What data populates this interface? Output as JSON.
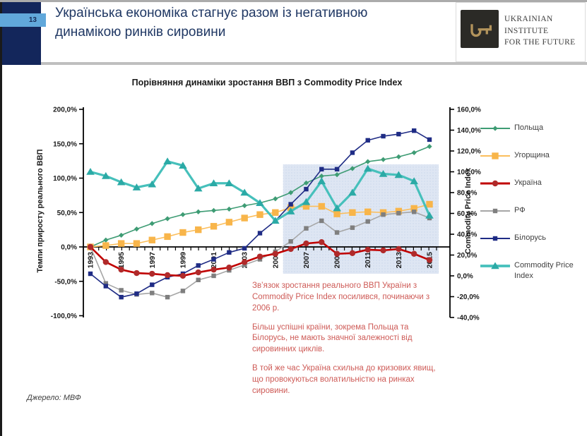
{
  "slide": {
    "number": "13",
    "title": "Українська економіка стагнує разом із негативною динамікою ринків сировини",
    "source": "Джерело: МВФ",
    "logo": {
      "line1": "Ukrainian",
      "line2": "Institute",
      "line3": "for the Future",
      "key_color": "#b3945c",
      "box_color": "#2b2a26"
    },
    "colors": {
      "title_blue": "#203864",
      "band_navy": "#13265b",
      "tab_blue": "#61a8db",
      "divider_gray": "#bfbfbf",
      "annotation_red": "#ce5b57"
    }
  },
  "chart_data": {
    "type": "line",
    "title": "Порівняння динаміки зростання ВВП з Commodity Price Index",
    "x": [
      1993,
      1994,
      1995,
      1996,
      1997,
      1998,
      1999,
      2000,
      2001,
      2002,
      2003,
      2004,
      2005,
      2006,
      2007,
      2008,
      2009,
      2010,
      2011,
      2012,
      2013,
      2014,
      2015
    ],
    "x_labeled_years": [
      "1993",
      "1995",
      "1997",
      "1999",
      "2001",
      "2003",
      "2005",
      "2007",
      "2009",
      "2011",
      "2013",
      "2015"
    ],
    "left_axis": {
      "label": "Темпи приросту реального ВВП",
      "min": -100,
      "max": 200,
      "tick_values": [
        200,
        150,
        100,
        50,
        0,
        -50,
        -100
      ],
      "tick_labels": [
        "200,0%",
        "150,0%",
        "100,0%",
        "50,0%",
        "0,0%",
        "-50,0%",
        "-100,0%"
      ]
    },
    "right_axis": {
      "label": "Commodity Price Index",
      "min": -40,
      "max": 160,
      "tick_values": [
        160,
        140,
        120,
        100,
        80,
        60,
        40,
        20,
        0,
        -20,
        -40
      ],
      "tick_labels": [
        "160,0%",
        "140,0%",
        "120,0%",
        "100,0%",
        "80,0%",
        "60,0%",
        "40,0%",
        "20,0%",
        "0,0%",
        "-20,0%",
        "-40,0%"
      ]
    },
    "highlight_region": {
      "x_start_year": 2005.5,
      "x_end_year": 2015.6,
      "top_left_value": 120,
      "bottom_left_value": -39,
      "fill": "#dee6f3"
    },
    "grid": false,
    "legend_position": "right",
    "series": [
      {
        "name": "Польща",
        "axis": "left",
        "color": "#3e9c74",
        "marker_color": "#3e9c74",
        "marker": "diamond",
        "line_width": 1.6,
        "values": [
          0,
          10,
          17,
          26,
          34,
          41,
          47,
          51,
          53,
          55,
          60,
          64,
          70,
          79,
          93,
          103,
          105,
          114,
          124,
          127,
          131,
          137,
          146
        ]
      },
      {
        "name": "Угорщина",
        "axis": "left",
        "color": "#fbbe5c",
        "marker_color": "#f8b54a",
        "marker": "square-large",
        "line_width": 1.6,
        "values": [
          0,
          2,
          5,
          5,
          10,
          15,
          21,
          25,
          30,
          36,
          42,
          47,
          50,
          57,
          59,
          59,
          48,
          50,
          51,
          50,
          52,
          56,
          62
        ]
      },
      {
        "name": "Україна",
        "axis": "left",
        "color": "#c00000",
        "marker_color": "#b02a2a",
        "marker": "circle",
        "line_width": 2.6,
        "values": [
          0,
          -22,
          -33,
          -38,
          -39,
          -41,
          -42,
          -37,
          -33,
          -30,
          -22,
          -14,
          -10,
          -3,
          5,
          7,
          -10,
          -9,
          -4,
          -5,
          -3,
          -10,
          -19
        ]
      },
      {
        "name": "РФ",
        "axis": "left",
        "color": "#a6a6a6",
        "marker_color": "#7f7f7f",
        "marker": "square",
        "line_width": 1.6,
        "values": [
          0,
          -53,
          -63,
          -69,
          -67,
          -73,
          -64,
          -48,
          -42,
          -34,
          -26,
          -18,
          -7,
          8,
          27,
          38,
          21,
          28,
          37,
          47,
          49,
          51,
          42
        ]
      },
      {
        "name": "Білорусь",
        "axis": "left",
        "color": "#1f2c85",
        "marker_color": "#1f2c85",
        "marker": "square",
        "line_width": 1.6,
        "values": [
          -39,
          -57,
          -73,
          -68,
          -55,
          -44,
          -39,
          -27,
          -18,
          -8,
          -2,
          20,
          38,
          62,
          84,
          113,
          113,
          137,
          155,
          161,
          164,
          169,
          156
        ]
      },
      {
        "name": "Commodity Price Index",
        "axis": "right",
        "color": "#46c0bb",
        "marker_color": "#2baaa6",
        "marker": "triangle",
        "line_width": 3.2,
        "values": [
          100,
          96,
          90,
          85,
          88,
          110,
          106,
          84,
          89,
          89,
          80,
          70,
          53,
          62,
          71,
          91,
          65,
          80,
          103,
          98,
          97,
          91,
          58
        ]
      }
    ],
    "annotations": [
      "Зв’язок зростання реального ВВП України з Commodity Price Index посилився, починаючи з 2006 р.",
      "Більш успішні країни, зокрема Польща та Білорусь, не мають значної залежності від сировинних циклів.",
      "В той же час Україна схильна до кризових явищ, що провокуються волатильністю на ринках сировини."
    ]
  }
}
